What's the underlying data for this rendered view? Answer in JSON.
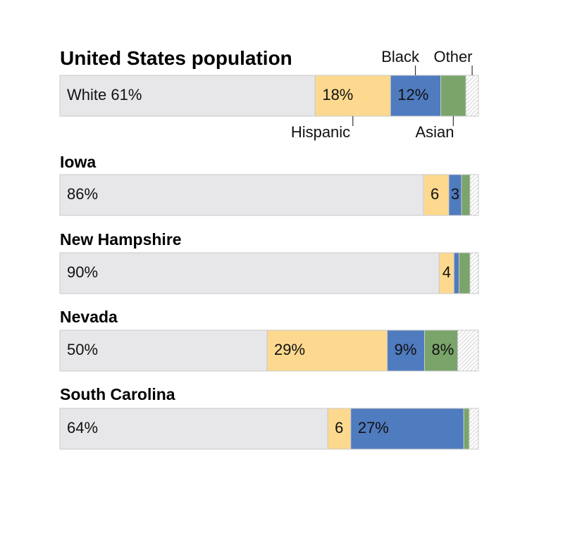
{
  "chart_data": {
    "type": "bar",
    "orientation": "horizontal-stacked-100",
    "categories_order": [
      "White",
      "Hispanic",
      "Black",
      "Asian",
      "Other"
    ],
    "colors": {
      "White": "#e7e7ea",
      "Hispanic": "#fcd98f",
      "Black": "#4f7bbf",
      "Asian": "#7aa46a",
      "Other": "hatched",
      "border": "#c9c9c9"
    },
    "callouts": {
      "Black": "Black",
      "Other": "Other",
      "Hispanic": "Hispanic",
      "Asian": "Asian"
    },
    "rows": [
      {
        "title": "United States population",
        "values": [
          61,
          18,
          12,
          6,
          3
        ],
        "labels": [
          "White 61%",
          "18%",
          "12%",
          "",
          ""
        ]
      },
      {
        "title": "Iowa",
        "values": [
          86,
          6,
          3,
          2,
          2
        ],
        "labels": [
          "86%",
          "6",
          "3",
          "",
          ""
        ]
      },
      {
        "title": "New Hampshire",
        "values": [
          90,
          3.5,
          1.2,
          2.6,
          2
        ],
        "labels": [
          "90%",
          "4",
          "",
          "",
          ""
        ]
      },
      {
        "title": "Nevada",
        "values": [
          50,
          29,
          9,
          8,
          5
        ],
        "labels": [
          "50%",
          "29%",
          "9%",
          "8%",
          ""
        ]
      },
      {
        "title": "South Carolina",
        "values": [
          64,
          5.5,
          27,
          1.3,
          2.2
        ],
        "labels": [
          "64%",
          "6",
          "27%",
          "",
          ""
        ]
      }
    ]
  }
}
